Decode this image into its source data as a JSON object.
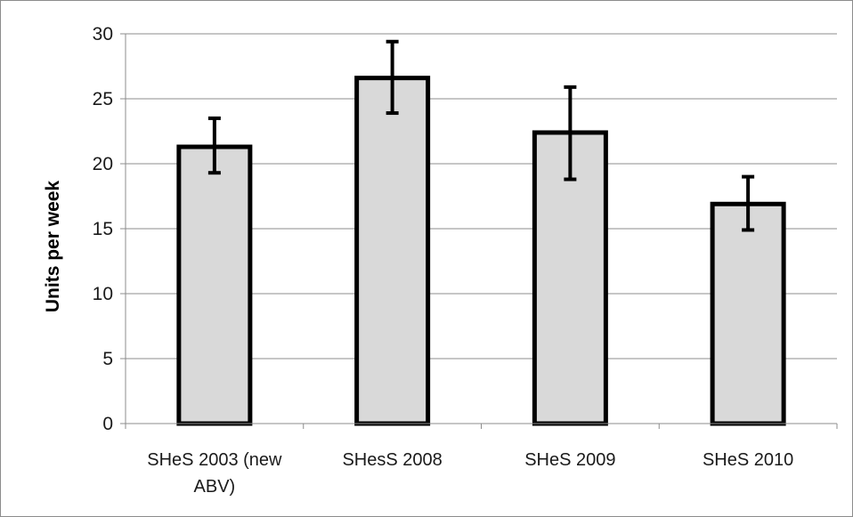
{
  "chart_data": {
    "type": "bar",
    "categories": [
      [
        "SHeS 2003 (new",
        "ABV)"
      ],
      [
        "SHesS 2008"
      ],
      [
        "SHeS 2009"
      ],
      [
        "SHeS 2010"
      ]
    ],
    "values": [
      21.3,
      26.6,
      22.4,
      16.9
    ],
    "error_low": [
      19.3,
      23.9,
      18.8,
      14.9
    ],
    "error_high": [
      23.5,
      29.4,
      25.9,
      19.0
    ],
    "ylabel": "Units per week",
    "xlabel": "",
    "ylim": [
      0,
      30
    ],
    "yticks": [
      "0",
      "5",
      "10",
      "15",
      "20",
      "25",
      "30"
    ],
    "grid": true,
    "legend": "none",
    "colors": {
      "bar_fill": "#d9d9d9",
      "bar_stroke": "#000000",
      "grid": "#8c8c8c",
      "error_bar": "#000000"
    }
  }
}
